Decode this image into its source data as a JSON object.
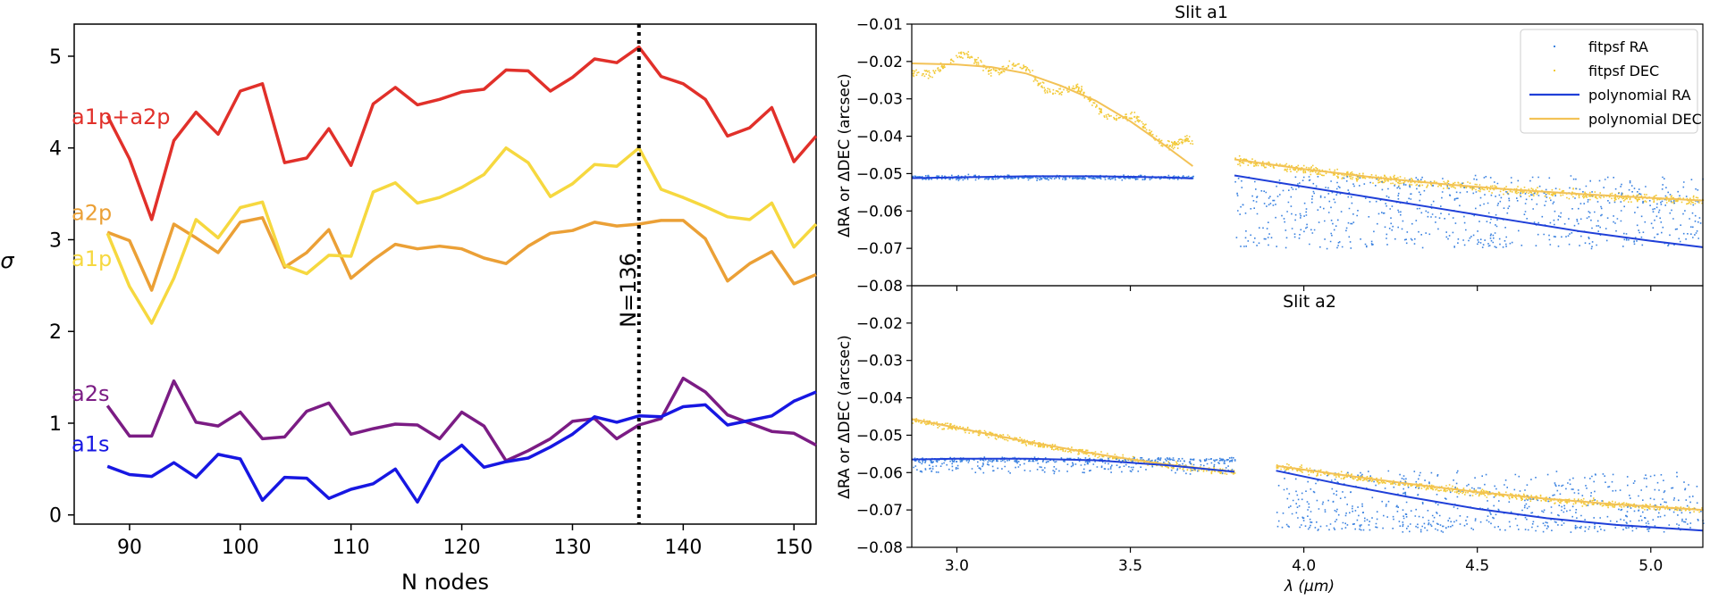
{
  "chart_data": [
    {
      "type": "line",
      "title": "",
      "xlabel": "N nodes",
      "ylabel": "σ",
      "xlim": [
        85,
        152
      ],
      "ylim": [
        -0.1,
        5.35
      ],
      "xticks": [
        90,
        100,
        110,
        120,
        130,
        140,
        150
      ],
      "yticks": [
        0,
        1,
        2,
        3,
        4,
        5
      ],
      "grid": false,
      "x": [
        88,
        90,
        92,
        94,
        96,
        98,
        100,
        102,
        104,
        106,
        108,
        110,
        112,
        114,
        116,
        118,
        120,
        122,
        124,
        126,
        128,
        130,
        132,
        134,
        136,
        138,
        140,
        142,
        144,
        146,
        148,
        150,
        152
      ],
      "series": [
        {
          "name": "a1p+a2p",
          "color": "#e1302a",
          "values": [
            4.35,
            3.88,
            3.22,
            4.08,
            4.39,
            4.15,
            4.62,
            4.7,
            3.84,
            3.89,
            4.21,
            3.81,
            4.48,
            4.66,
            4.47,
            4.53,
            4.61,
            4.64,
            4.85,
            4.84,
            4.62,
            4.77,
            4.97,
            4.93,
            5.1,
            4.78,
            4.7,
            4.53,
            4.13,
            4.22,
            4.44,
            3.85,
            4.13
          ]
        },
        {
          "name": "a2p",
          "color": "#eba036",
          "values": [
            3.08,
            2.99,
            2.45,
            3.17,
            3.02,
            2.86,
            3.19,
            3.24,
            2.7,
            2.86,
            3.11,
            2.58,
            2.78,
            2.95,
            2.9,
            2.93,
            2.9,
            2.8,
            2.74,
            2.93,
            3.07,
            3.1,
            3.19,
            3.15,
            3.17,
            3.21,
            3.21,
            3.01,
            2.55,
            2.74,
            2.87,
            2.52,
            2.62
          ]
        },
        {
          "name": "a1p",
          "color": "#f6d83f",
          "values": [
            3.07,
            2.49,
            2.09,
            2.58,
            3.22,
            3.02,
            3.35,
            3.41,
            2.72,
            2.63,
            2.83,
            2.82,
            3.52,
            3.62,
            3.4,
            3.46,
            3.57,
            3.71,
            4.0,
            3.84,
            3.47,
            3.61,
            3.82,
            3.8,
            4.0,
            3.55,
            3.46,
            3.36,
            3.25,
            3.22,
            3.4,
            2.92,
            3.17
          ]
        },
        {
          "name": "a2s",
          "color": "#7b1c84",
          "values": [
            1.19,
            0.86,
            0.86,
            1.46,
            1.01,
            0.97,
            1.12,
            0.83,
            0.85,
            1.13,
            1.22,
            0.88,
            0.94,
            0.99,
            0.98,
            0.83,
            1.12,
            0.97,
            0.59,
            0.7,
            0.83,
            1.02,
            1.05,
            0.83,
            0.98,
            1.05,
            1.49,
            1.34,
            1.09,
            1.0,
            0.91,
            0.89,
            0.76
          ]
        },
        {
          "name": "a1s",
          "color": "#1717e2",
          "values": [
            0.53,
            0.44,
            0.42,
            0.57,
            0.41,
            0.66,
            0.61,
            0.16,
            0.41,
            0.4,
            0.18,
            0.28,
            0.34,
            0.5,
            0.14,
            0.58,
            0.76,
            0.52,
            0.58,
            0.62,
            0.74,
            0.88,
            1.07,
            1.01,
            1.08,
            1.07,
            1.18,
            1.2,
            0.98,
            1.03,
            1.08,
            1.24,
            1.34
          ]
        }
      ],
      "vline": {
        "x": 136,
        "label": "N=136"
      }
    },
    {
      "type": "scatter",
      "title": "Slit a1",
      "xlabel": "λ (μm)",
      "ylabel": "ΔRA or ΔDEC (arcsec)",
      "xlim": [
        2.87,
        5.15
      ],
      "ylim": [
        -0.08,
        -0.01
      ],
      "xticks": [
        "3.0",
        "3.5",
        "4.0",
        "4.5",
        "5.0"
      ],
      "yticks": [
        "−0.01",
        "−0.02",
        "−0.03",
        "−0.04",
        "−0.05",
        "−0.06",
        "−0.07",
        "−0.08"
      ],
      "legend": {
        "placement": "top-right",
        "entries": [
          "fitpsf RA",
          "fitpsf DEC",
          "polynomial RA",
          "polynomial DEC"
        ]
      },
      "segments": [
        {
          "x_range": [
            2.87,
            3.68
          ],
          "gap_after": true,
          "ra_poly": [
            [
              2.87,
              -0.0512
            ],
            [
              3.0,
              -0.051
            ],
            [
              3.2,
              -0.0507
            ],
            [
              3.4,
              -0.0507
            ],
            [
              3.6,
              -0.051
            ],
            [
              3.68,
              -0.0513
            ]
          ],
          "dec_poly": [
            [
              2.87,
              -0.0205
            ],
            [
              3.0,
              -0.0208
            ],
            [
              3.1,
              -0.0215
            ],
            [
              3.2,
              -0.0232
            ],
            [
              3.3,
              -0.0265
            ],
            [
              3.4,
              -0.0305
            ],
            [
              3.5,
              -0.036
            ],
            [
              3.6,
              -0.0425
            ],
            [
              3.68,
              -0.048
            ]
          ],
          "dec_scatter_center": [
            [
              2.87,
              -0.024
            ],
            [
              2.95,
              -0.02
            ],
            [
              3.05,
              -0.02
            ],
            [
              3.15,
              -0.0215
            ],
            [
              3.25,
              -0.0255
            ],
            [
              3.35,
              -0.029
            ],
            [
              3.45,
              -0.0335
            ],
            [
              3.55,
              -0.0385
            ],
            [
              3.68,
              -0.043
            ]
          ]
        },
        {
          "x_range": [
            3.8,
            5.15
          ],
          "ra_poly": [
            [
              3.8,
              -0.0505
            ],
            [
              4.0,
              -0.0535
            ],
            [
              4.2,
              -0.0565
            ],
            [
              4.4,
              -0.0595
            ],
            [
              4.6,
              -0.0625
            ],
            [
              4.8,
              -0.0655
            ],
            [
              5.0,
              -0.068
            ],
            [
              5.15,
              -0.0697
            ]
          ],
          "dec_poly": [
            [
              3.8,
              -0.0462
            ],
            [
              4.0,
              -0.0488
            ],
            [
              4.2,
              -0.051
            ],
            [
              4.4,
              -0.0528
            ],
            [
              4.6,
              -0.0543
            ],
            [
              4.8,
              -0.0555
            ],
            [
              5.0,
              -0.0565
            ],
            [
              5.15,
              -0.0572
            ]
          ]
        }
      ]
    },
    {
      "type": "scatter",
      "title": "Slit a2",
      "xlabel": "λ (μm)",
      "ylabel": "ΔRA or ΔDEC (arcsec)",
      "xlim": [
        2.87,
        5.15
      ],
      "ylim": [
        -0.08,
        -0.01
      ],
      "xticks": [
        "3.0",
        "3.5",
        "4.0",
        "4.5",
        "5.0"
      ],
      "yticks": [
        "−0.02",
        "−0.03",
        "−0.04",
        "−0.05",
        "−0.06",
        "−0.07",
        "−0.08"
      ],
      "segments": [
        {
          "x_range": [
            2.87,
            3.8
          ],
          "gap_after": true,
          "ra_poly": [
            [
              2.87,
              -0.0565
            ],
            [
              3.0,
              -0.0563
            ],
            [
              3.2,
              -0.0563
            ],
            [
              3.4,
              -0.0567
            ],
            [
              3.6,
              -0.058
            ],
            [
              3.8,
              -0.0598
            ]
          ],
          "dec_poly": [
            [
              2.87,
              -0.0457
            ],
            [
              3.0,
              -0.048
            ],
            [
              3.2,
              -0.0517
            ],
            [
              3.4,
              -0.055
            ],
            [
              3.6,
              -0.0578
            ],
            [
              3.8,
              -0.0598
            ]
          ]
        },
        {
          "x_range": [
            3.92,
            5.15
          ],
          "ra_poly": [
            [
              3.92,
              -0.0595
            ],
            [
              4.1,
              -0.063
            ],
            [
              4.3,
              -0.0665
            ],
            [
              4.5,
              -0.0697
            ],
            [
              4.7,
              -0.0722
            ],
            [
              4.9,
              -0.074
            ],
            [
              5.15,
              -0.0755
            ]
          ],
          "dec_poly": [
            [
              3.92,
              -0.0582
            ],
            [
              4.1,
              -0.0605
            ],
            [
              4.3,
              -0.063
            ],
            [
              4.5,
              -0.0652
            ],
            [
              4.7,
              -0.067
            ],
            [
              4.9,
              -0.0685
            ],
            [
              5.15,
              -0.07
            ]
          ]
        }
      ]
    }
  ],
  "colors": {
    "fitpsf_ra": "#3b82e0",
    "fitpsf_dec": "#f2c936",
    "poly_ra": "#1f3fd8",
    "poly_dec": "#f3c256"
  }
}
